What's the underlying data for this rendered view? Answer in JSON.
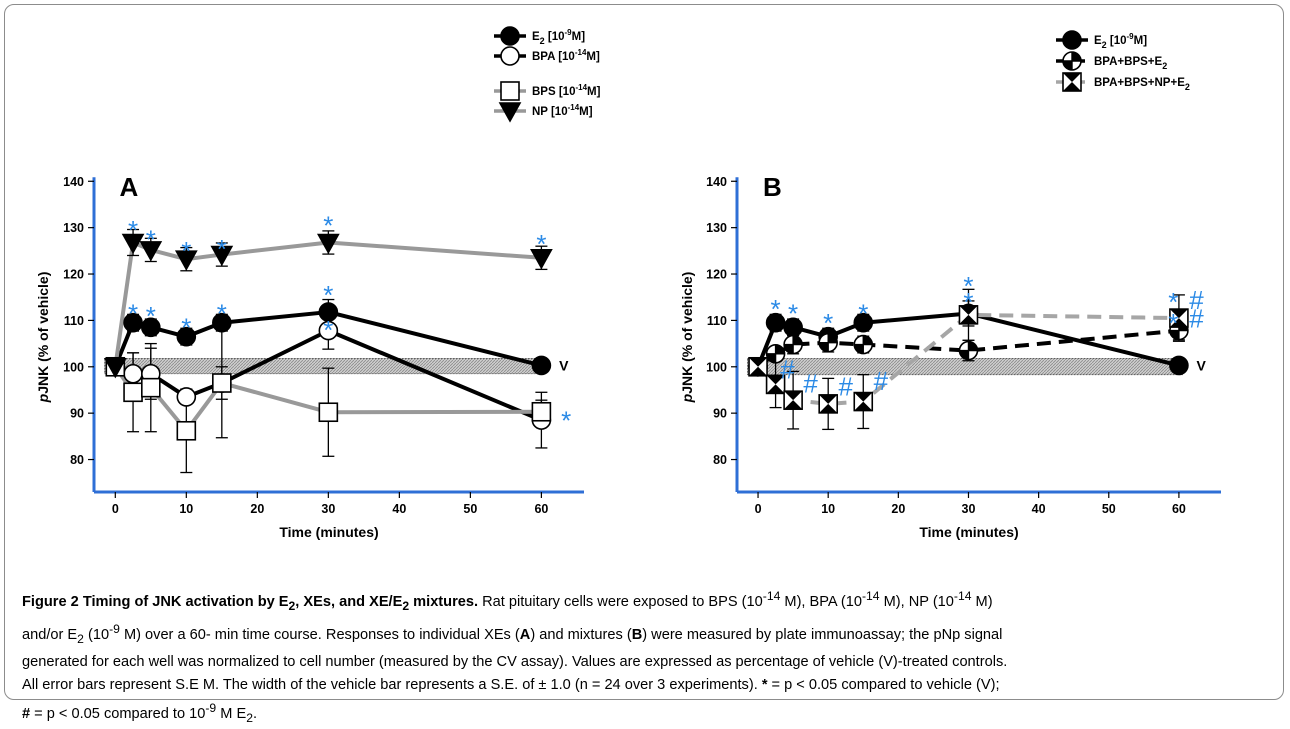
{
  "chart_data": [
    {
      "type": "line",
      "panel_label": "A",
      "xlabel": "Time (minutes)",
      "ylabel": "pJNK (% of vehicle)",
      "ylabel_parts": [
        "p",
        "JNK (% of vehicle)"
      ],
      "xlim": [
        -3,
        66
      ],
      "ylim": [
        73,
        142
      ],
      "xticks": [
        0,
        10,
        20,
        30,
        40,
        50,
        60
      ],
      "yticks": [
        80,
        90,
        100,
        110,
        120,
        130,
        140
      ],
      "vehicle_band": {
        "low": 98.5,
        "high": 101.8,
        "label": "V"
      },
      "legend_groups": [
        {
          "position": "top-right",
          "entries": [
            {
              "series": 0,
              "text": "E",
              "sub": "2",
              "rest": " [10",
              "sup": "-9",
              "tail": "M]"
            },
            {
              "series": 1,
              "text": "BPA [10",
              "sup": "-14",
              "tail": "M]"
            }
          ]
        },
        {
          "position": "top-right",
          "entries": [
            {
              "series": 2,
              "text": "BPS [10",
              "sup": "-14",
              "tail": "M]"
            },
            {
              "series": 3,
              "text": "NP [10",
              "sup": "-14",
              "tail": "M]"
            }
          ]
        }
      ],
      "series": [
        {
          "name": "E2 [10-9M]",
          "marker": "filled-circle",
          "line_color": "#000000",
          "dash": "solid",
          "x": [
            0,
            2.5,
            5,
            10,
            15,
            30,
            60
          ],
          "y": [
            100,
            109.5,
            108.5,
            106.5,
            109.5,
            111.8,
            100.3
          ],
          "err": [
            0,
            1.8,
            1.8,
            1.8,
            1.8,
            2.7,
            1.0
          ]
        },
        {
          "name": "BPA [10-14M]",
          "marker": "open-circle",
          "line_color": "#000000",
          "dash": "solid",
          "x": [
            0,
            2.5,
            5,
            10,
            15,
            30,
            60
          ],
          "y": [
            100,
            98.5,
            98.5,
            93.5,
            96.5,
            107.8,
            88.5
          ],
          "err": [
            0,
            4.5,
            5.5,
            1.5,
            3.5,
            4.0,
            6.0
          ]
        },
        {
          "name": "BPS [10-14M]",
          "marker": "open-square",
          "line_color": "#999999",
          "dash": "solid",
          "x": [
            0,
            2.5,
            5,
            10,
            15,
            30,
            60
          ],
          "y": [
            100,
            94.5,
            95.5,
            86.2,
            96.5,
            90.2,
            90.3
          ],
          "err": [
            0,
            8.5,
            9.5,
            9.0,
            11.8,
            9.5,
            2.5
          ]
        },
        {
          "name": "NP [10-14M]",
          "marker": "filled-triangle-down",
          "line_color": "#999999",
          "dash": "solid",
          "x": [
            0,
            2.5,
            5,
            10,
            15,
            30,
            60
          ],
          "y": [
            100,
            126.8,
            125.2,
            123.2,
            124.2,
            126.8,
            123.5
          ],
          "err": [
            0,
            2.8,
            2.5,
            2.5,
            2.5,
            2.5,
            2.5
          ]
        }
      ],
      "annotations": [
        {
          "text": "*",
          "x": 2.5,
          "y": 127.5
        },
        {
          "text": "*",
          "x": 5,
          "y": 125.5
        },
        {
          "text": "*",
          "x": 10,
          "y": 123.0
        },
        {
          "text": "*",
          "x": 15,
          "y": 123.5
        },
        {
          "text": "*",
          "x": 30,
          "y": 128.5
        },
        {
          "text": "*",
          "x": 60,
          "y": 124.5
        },
        {
          "text": "*",
          "x": 2.5,
          "y": 109.5
        },
        {
          "text": "*",
          "x": 5,
          "y": 109.0
        },
        {
          "text": "*",
          "x": 10,
          "y": 106.5
        },
        {
          "text": "*",
          "x": 15,
          "y": 109.5
        },
        {
          "text": "*",
          "x": 30,
          "y": 113.5
        },
        {
          "text": "*",
          "x": 30,
          "y": 106.0
        },
        {
          "text": "*",
          "x": 63.5,
          "y": 86.5
        }
      ]
    },
    {
      "type": "line",
      "panel_label": "B",
      "xlabel": "Time (minutes)",
      "ylabel": "pJNK (% of vehicle)",
      "ylabel_parts": [
        "p",
        "JNK (% of vehicle)"
      ],
      "xlim": [
        -3,
        66
      ],
      "ylim": [
        73,
        142
      ],
      "xticks": [
        0,
        10,
        20,
        30,
        40,
        50,
        60
      ],
      "yticks": [
        80,
        90,
        100,
        110,
        120,
        130,
        140
      ],
      "vehicle_band": {
        "low": 98.3,
        "high": 101.8,
        "label": "V"
      },
      "legend_groups": [
        {
          "position": "top-right",
          "entries": [
            {
              "series": 0,
              "text": "E",
              "sub": "2",
              "rest": " [10",
              "sup": "-9",
              "tail": "M]"
            },
            {
              "series": 1,
              "text": "BPA+BPS+E",
              "sub": "2",
              "rest": "",
              "sup": "",
              "tail": ""
            },
            {
              "series": 2,
              "text": "BPA+BPS+NP+E",
              "sub": "2",
              "rest": "",
              "sup": "",
              "tail": ""
            }
          ]
        }
      ],
      "series": [
        {
          "name": "E2 [10-9M]",
          "marker": "filled-circle",
          "line_color": "#000000",
          "dash": "solid",
          "x": [
            0,
            2.5,
            5,
            10,
            15,
            30,
            60
          ],
          "y": [
            100,
            109.5,
            108.5,
            106.5,
            109.5,
            111.5,
            100.3
          ],
          "err": [
            0,
            1.8,
            1.8,
            1.8,
            1.8,
            2.7,
            1.0
          ]
        },
        {
          "name": "BPA+BPS+E2",
          "marker": "half-circle",
          "line_color": "#000000",
          "dash": "dashed",
          "x": [
            0,
            2.5,
            5,
            10,
            15,
            30,
            60
          ],
          "y": [
            100,
            102.8,
            104.8,
            105.2,
            104.8,
            103.5,
            107.8
          ],
          "err": [
            0,
            1.5,
            2.0,
            2.0,
            1.8,
            2.2,
            2.0
          ]
        },
        {
          "name": "BPA+BPS+NP+E2",
          "marker": "hourglass-square",
          "line_color": "#a6a6a6",
          "dash": "dashed",
          "x": [
            0,
            2.5,
            5,
            10,
            15,
            30,
            60
          ],
          "y": [
            100,
            96.2,
            92.8,
            92.0,
            92.5,
            111.2,
            110.5
          ],
          "err": [
            0,
            5.0,
            6.2,
            5.5,
            5.8,
            5.5,
            5.0
          ]
        }
      ],
      "annotations": [
        {
          "text": "*",
          "x": 2.5,
          "y": 110.5
        },
        {
          "text": "*",
          "x": 5,
          "y": 109.5
        },
        {
          "text": "*",
          "x": 10,
          "y": 107.5
        },
        {
          "text": "*",
          "x": 15,
          "y": 109.5
        },
        {
          "text": "*",
          "x": 30,
          "y": 115.5
        },
        {
          "text": "*",
          "x": 30,
          "y": 112.0
        },
        {
          "text": "*",
          "x": 59.2,
          "y": 112.0
        },
        {
          "text": "*",
          "x": 59.2,
          "y": 107.5
        },
        {
          "text": "#",
          "x": 62.5,
          "y": 112.5
        },
        {
          "text": "#",
          "x": 62.5,
          "y": 108.5
        },
        {
          "text": "#",
          "x": 4.2,
          "y": 97.5
        },
        {
          "text": "#",
          "x": 7.5,
          "y": 94.5
        },
        {
          "text": "#",
          "x": 12.5,
          "y": 93.8
        },
        {
          "text": "#",
          "x": 17.5,
          "y": 95.0
        }
      ]
    }
  ],
  "colors": {
    "axis_blue": "#2f6fd6",
    "significance_blue": "#2b8ae6",
    "grey_series": "#999999"
  },
  "caption": {
    "title": "Figure 2 Timing of JNK activation by E",
    "title_sub": "2",
    "title_tail": ", XEs, and XE/E",
    "title_sub2": "2",
    "title_end": " mixtures.",
    "line1": " Rat pituitary cells were exposed to BPS (10",
    "l1_sup1": "-14",
    "l1_b": " M), BPA (10",
    "l1_sup2": "-14",
    "l1_c": " M), NP (10",
    "l1_sup3": "-14",
    "l1_d": " M)",
    "line2a": "and/or E",
    "l2_sub": "2",
    "l2_b": " (10",
    "l2_sup": "-9",
    "l2_c": " M) over a 60- min time course. Responses to individual XEs (",
    "l2_A": "A",
    "l2_d": ") and mixtures (",
    "l2_B": "B",
    "l2_e": ") were measured by plate immunoassay; the pNp signal",
    "line3": "generated for each well was normalized to cell number (measured by the CV assay). Values are expressed as percentage of vehicle (V)-treated controls.",
    "line4": "All error bars represent S.E M. The width of the vehicle bar represents a S.E. of ± 1.0 (n = 24 over 3 experiments). ",
    "l4_star": "*",
    "l4_b": " = p < 0.05 compared to vehicle (V);",
    "l5_hash": "#",
    "l5_a": " = p < 0.05 compared to 10",
    "l5_sup": "-9",
    "l5_b": " M E",
    "l5_sub": "2",
    "l5_c": "."
  }
}
